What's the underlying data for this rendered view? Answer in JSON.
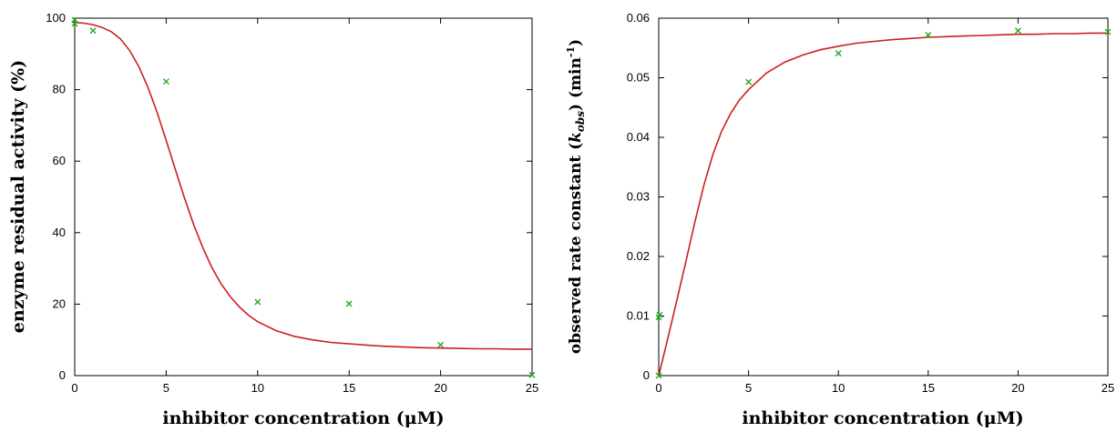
{
  "chart_data": [
    {
      "type": "scatter",
      "xlabel": "inhibitor concentration (μM)",
      "ylabel": "enzyme residual activity (%)",
      "xlim": [
        0,
        25
      ],
      "ylim": [
        0,
        100
      ],
      "xticks": [
        0,
        5,
        10,
        15,
        20,
        25
      ],
      "yticks": [
        0,
        20,
        40,
        60,
        80,
        100
      ],
      "grid": false,
      "series": [
        {
          "kind": "points",
          "color": "#22a822",
          "marker": "x",
          "x": [
            0,
            0,
            1,
            5,
            10,
            15,
            20,
            25
          ],
          "y": [
            99.5,
            98.5,
            96.5,
            82.3,
            20.6,
            20.1,
            8.6,
            0.2
          ]
        },
        {
          "kind": "fit-line",
          "color": "#cc1f1f",
          "x": [
            0,
            0.5,
            1,
            1.5,
            2,
            2.5,
            3,
            3.5,
            4,
            4.5,
            5,
            5.5,
            6,
            6.5,
            7,
            7.5,
            8,
            8.5,
            9,
            9.5,
            10,
            11,
            12,
            13,
            14,
            15,
            16,
            17,
            18,
            19,
            20,
            21,
            22,
            23,
            24,
            25
          ],
          "y": [
            98.8,
            98.6,
            98.2,
            97.4,
            96.2,
            94.2,
            91.0,
            86.5,
            80.7,
            73.7,
            65.8,
            57.7,
            49.7,
            42.3,
            35.8,
            30.2,
            25.7,
            22.1,
            19.2,
            16.9,
            15.1,
            12.6,
            11.0,
            10.0,
            9.3,
            8.9,
            8.5,
            8.2,
            8.0,
            7.8,
            7.7,
            7.6,
            7.5,
            7.5,
            7.4,
            7.4
          ]
        }
      ]
    },
    {
      "type": "scatter",
      "xlabel": "inhibitor concentration (μM)",
      "ylabel_main": "observed rate constant (",
      "ylabel_k": "k",
      "ylabel_sub": "obs",
      "ylabel_mid": ") (min",
      "ylabel_sup": "-1",
      "ylabel_end": ")",
      "xlim": [
        0,
        25
      ],
      "ylim": [
        0,
        0.06
      ],
      "xticks": [
        0,
        5,
        10,
        15,
        20,
        25
      ],
      "yticks": [
        0,
        0.01,
        0.02,
        0.03,
        0.04,
        0.05,
        0.06
      ],
      "grid": false,
      "series": [
        {
          "kind": "points",
          "color": "#22a822",
          "marker": "x",
          "x": [
            0,
            0,
            0.05,
            5,
            10,
            15,
            20,
            25
          ],
          "y": [
            0.0,
            0.0098,
            0.0102,
            0.0493,
            0.0541,
            0.0572,
            0.0579,
            0.0577
          ]
        },
        {
          "kind": "fit-line",
          "color": "#cc1f1f",
          "x": [
            0,
            0.5,
            1,
            1.5,
            2,
            2.5,
            3,
            3.5,
            4,
            4.5,
            5,
            6,
            7,
            8,
            9,
            10,
            11,
            12,
            13,
            14,
            15,
            16,
            17,
            18,
            19,
            20,
            21,
            22,
            23,
            24,
            25
          ],
          "y": [
            0.0,
            0.0062,
            0.0125,
            0.019,
            0.0256,
            0.0318,
            0.037,
            0.041,
            0.044,
            0.0463,
            0.048,
            0.0508,
            0.0526,
            0.0538,
            0.0547,
            0.0553,
            0.0558,
            0.0561,
            0.0564,
            0.0566,
            0.0568,
            0.0569,
            0.057,
            0.0571,
            0.0572,
            0.0573,
            0.0573,
            0.0574,
            0.0574,
            0.0575,
            0.0575
          ]
        }
      ]
    }
  ]
}
